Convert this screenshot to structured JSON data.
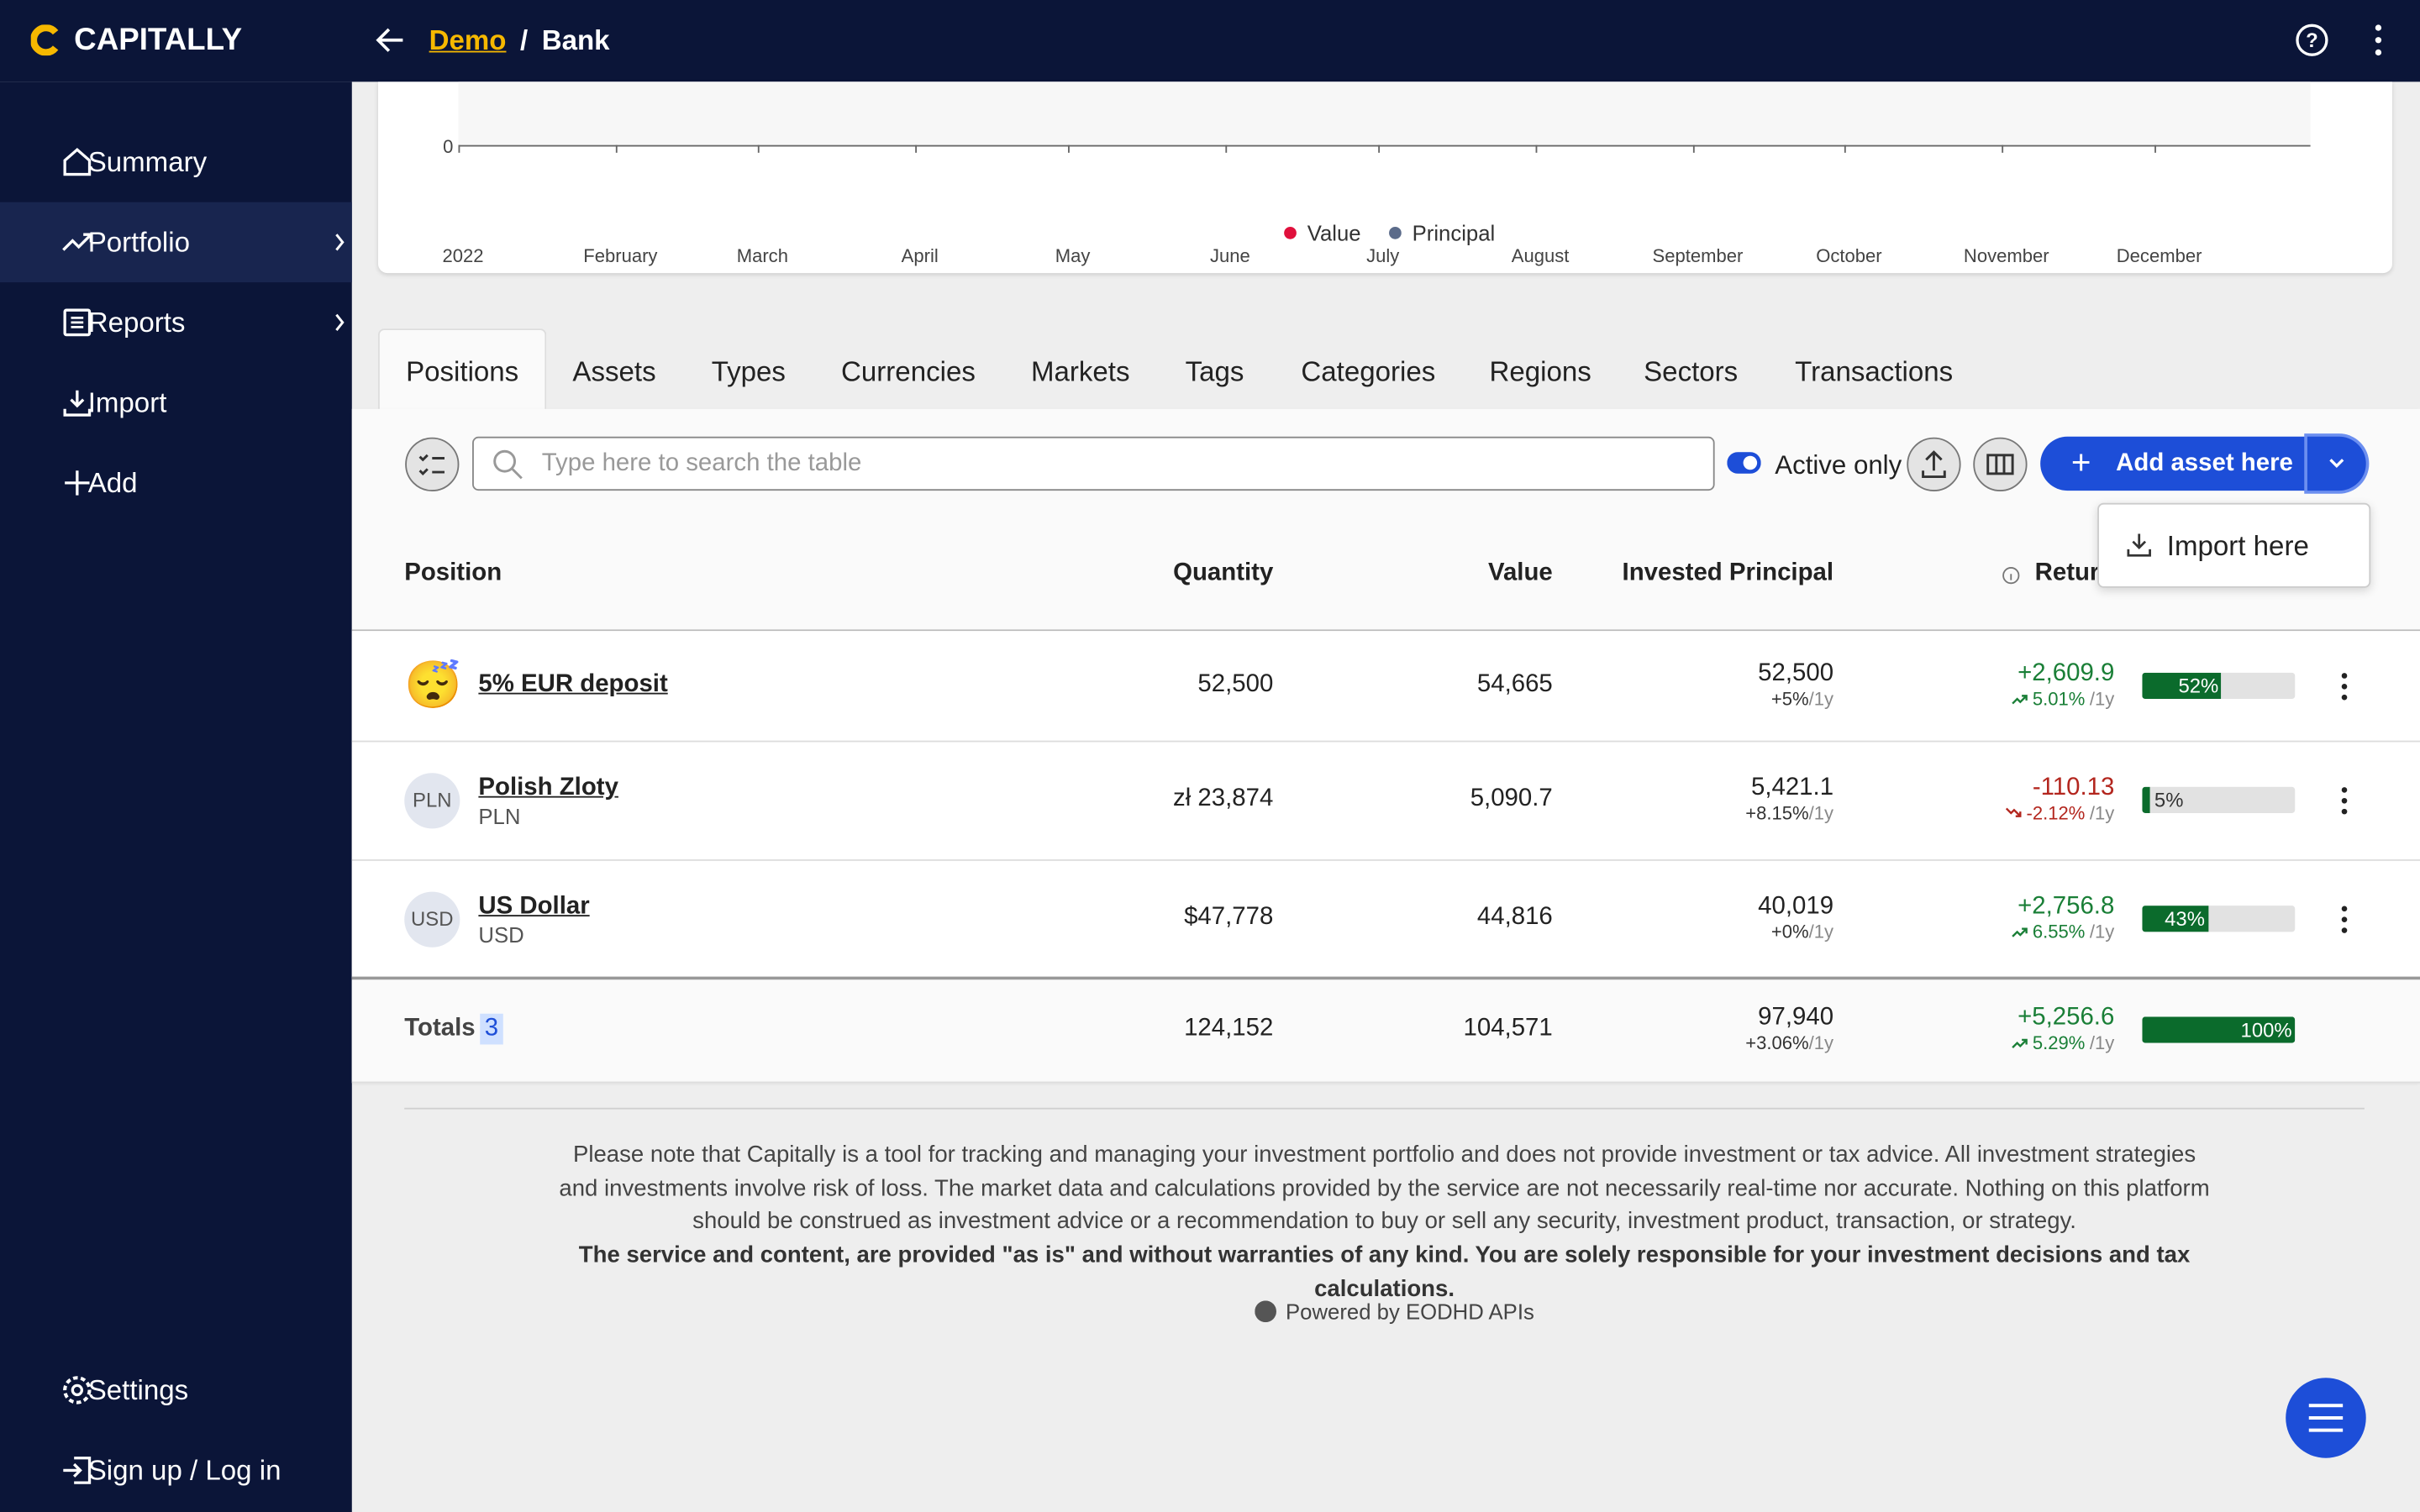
{
  "header": {
    "logo": "CAPITALLY",
    "breadcrumb": [
      "Demo",
      "Bank"
    ]
  },
  "sidebar": {
    "items": [
      "Summary",
      "Portfolio",
      "Reports",
      "Import",
      "Add"
    ],
    "bottom": [
      "Settings",
      "Sign up / Log in"
    ]
  },
  "chart": {
    "y_tick": "0",
    "x_labels": [
      "2022",
      "February",
      "March",
      "April",
      "May",
      "June",
      "July",
      "August",
      "September",
      "October",
      "November",
      "December"
    ],
    "legend": [
      "Value",
      "Principal"
    ]
  },
  "tabs": [
    "Positions",
    "Assets",
    "Types",
    "Currencies",
    "Markets",
    "Tags",
    "Categories",
    "Regions",
    "Sectors",
    "Transactions"
  ],
  "toolbar": {
    "search_placeholder": "Type here to search the table",
    "active_only": "Active only",
    "add_button": "Add asset here",
    "dropdown_item": "Import here"
  },
  "table": {
    "columns": [
      "Position",
      "Quantity",
      "Value",
      "Invested Principal",
      "Return"
    ],
    "period": "/1y",
    "rows": [
      {
        "icon": "😴",
        "name": "5% EUR deposit",
        "quantity": "52,500",
        "value": "54,665",
        "principal": "52,500",
        "principal_rate": "+5%",
        "return": "+2,609.9",
        "return_rate": "5.01%",
        "share": "52%"
      },
      {
        "icon": "PLN",
        "name": "Polish Zloty",
        "ticker": "PLN",
        "quantity": "zł 23,874",
        "value": "5,090.7",
        "principal": "5,421.1",
        "principal_rate": "+8.15%",
        "return": "-110.13",
        "return_rate": "-2.12%",
        "share": "5%"
      },
      {
        "icon": "USD",
        "name": "US Dollar",
        "ticker": "USD",
        "quantity": "$47,778",
        "value": "44,816",
        "principal": "40,019",
        "principal_rate": "+0%",
        "return": "+2,756.8",
        "return_rate": "6.55%",
        "share": "43%"
      }
    ],
    "totals": {
      "label": "Totals",
      "count": "3",
      "quantity": "124,152",
      "value": "104,571",
      "principal": "97,940",
      "principal_rate": "+3.06%",
      "return": "+5,256.6",
      "return_rate": "5.29%",
      "share": "100%"
    }
  },
  "footer": {
    "disclaimer": "Please note that Capitally is a tool for tracking and managing your investment portfolio and does not provide investment or tax advice. All investment strategies and investments involve risk of loss. The market data and calculations provided by the service are not necessarily real-time nor accurate. Nothing on this platform should be construed as investment advice or a recommendation to buy or sell any security, investment product, transaction, or strategy.",
    "disclaimer_bold": "The service and content, are provided \"as is\" and without warranties of any kind. You are solely responsible for your investment decisions and tax calculations.",
    "powered": "Powered by EODHD APIs"
  }
}
